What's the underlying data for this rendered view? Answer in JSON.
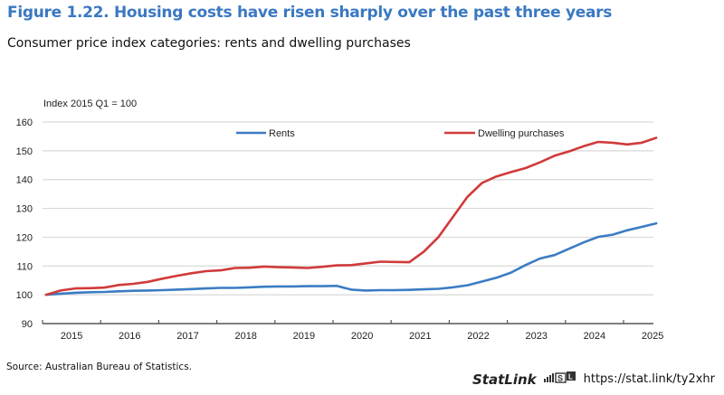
{
  "figure": {
    "title": "Figure 1.22. Housing costs have risen sharply over the past three years",
    "subtitle": "Consumer price index categories: rents and dwelling purchases",
    "source": "Source: Australian Bureau of Statistics.",
    "statlink_label": "StatLink",
    "statlink_url": "https://stat.link/ty2xhr"
  },
  "colors": {
    "title": "#3a78c2",
    "rents": "#3b7cc4",
    "dwelling": "#d13a3a",
    "grid": "#d9d9d9",
    "axis": "#555555"
  },
  "chart_data": {
    "type": "line",
    "title": "Figure 1.22. Housing costs have risen sharply over the past three years",
    "subtitle": "Consumer price index categories: rents and dwelling purchases",
    "ylabel": "Index 2015 Q1 = 100",
    "xlabel": "",
    "ylim": [
      90,
      160
    ],
    "yticks": [
      90,
      100,
      110,
      120,
      130,
      140,
      150,
      160
    ],
    "x_categories": [
      "2015",
      "2016",
      "2017",
      "2018",
      "2019",
      "2020",
      "2021",
      "2022",
      "2023",
      "2024",
      "2025"
    ],
    "frequency": "quarterly",
    "x_start": "2015 Q1",
    "x_end": "2025 Q2",
    "grid": true,
    "legend_position": "top",
    "series": [
      {
        "name": "Rents",
        "color": "#3b7cc4",
        "values": [
          100,
          100.4,
          100.7,
          100.9,
          101.0,
          101.2,
          101.4,
          101.5,
          101.6,
          101.8,
          102.0,
          102.2,
          102.4,
          102.4,
          102.6,
          102.8,
          102.9,
          102.9,
          103.0,
          103.0,
          103.1,
          101.8,
          101.5,
          101.6,
          101.6,
          101.7,
          101.9,
          102.1,
          102.6,
          103.3,
          104.6,
          105.9,
          107.7,
          110.3,
          112.6,
          113.8,
          116.0,
          118.2,
          120.1,
          120.9,
          122.4,
          123.6,
          124.8
        ]
      },
      {
        "name": "Dwelling purchases",
        "color": "#d13a3a",
        "values": [
          100,
          101.5,
          102.2,
          102.3,
          102.5,
          103.4,
          103.8,
          104.5,
          105.6,
          106.6,
          107.5,
          108.2,
          108.5,
          109.3,
          109.4,
          109.8,
          109.6,
          109.5,
          109.3,
          109.7,
          110.2,
          110.3,
          110.9,
          111.5,
          111.4,
          111.3,
          115.0,
          120.0,
          127.0,
          134.0,
          138.8,
          141.1,
          142.6,
          144.0,
          146.0,
          148.3,
          149.8,
          151.6,
          153.1,
          152.8,
          152.2,
          152.8,
          154.5
        ]
      }
    ]
  }
}
